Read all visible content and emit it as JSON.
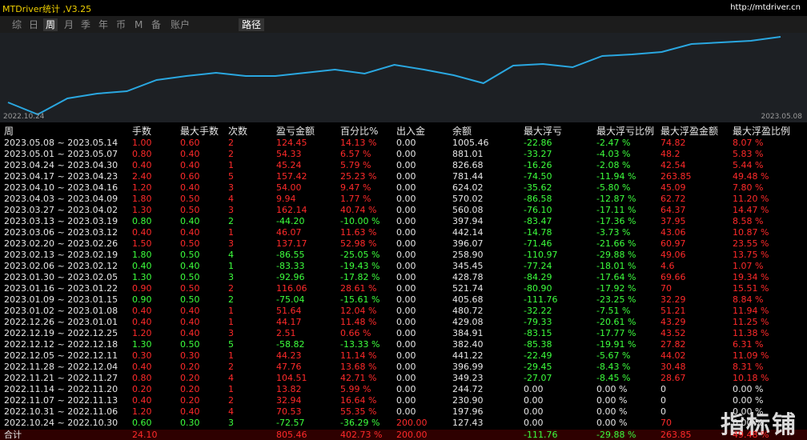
{
  "header": {
    "title": "MTDriver统计 ,V3.25",
    "url": "http://mtdriver.cn"
  },
  "tabs": [
    "综",
    "日",
    "周",
    "月",
    "季",
    "年",
    "币",
    "M",
    "备",
    "账户"
  ],
  "selected_tab": 2,
  "path_button": "路径",
  "chart_data": {
    "type": "line",
    "x": [
      "2022.10.24",
      null,
      null,
      null,
      null,
      null,
      null,
      null,
      null,
      null,
      null,
      null,
      null,
      null,
      null,
      null,
      null,
      null,
      null,
      null,
      null,
      null,
      null,
      null,
      null,
      null,
      "2023.05.08"
    ],
    "values": [
      25,
      10,
      30,
      36,
      39,
      53,
      58,
      62,
      58,
      58,
      62,
      66,
      61,
      72,
      66,
      59,
      49,
      71,
      73,
      69,
      83,
      85,
      88,
      98,
      100,
      102,
      107
    ],
    "ylim": [
      0,
      110
    ],
    "color": "#2aa7e0"
  },
  "table": {
    "columns": [
      "周",
      "手数",
      "最大手数",
      "次数",
      "盈亏金额",
      "百分比%",
      "出入金",
      "余额",
      "最大浮亏",
      "最大浮亏比例",
      "最大浮盈金额",
      "最大浮盈比例"
    ],
    "rows": [
      [
        "2023.05.08 ~ 2023.05.14",
        "1.00",
        "0.60",
        "2",
        "124.45",
        "14.13 %",
        "0.00",
        "1005.46",
        "-22.86",
        "-2.47 %",
        "74.82",
        "8.07 %"
      ],
      [
        "2023.05.01 ~ 2023.05.07",
        "0.80",
        "0.40",
        "2",
        "54.33",
        "6.57 %",
        "0.00",
        "881.01",
        "-33.27",
        "-4.03 %",
        "48.2",
        "5.83 %"
      ],
      [
        "2023.04.24 ~ 2023.04.30",
        "0.40",
        "0.40",
        "1",
        "45.24",
        "5.79 %",
        "0.00",
        "826.68",
        "-16.26",
        "-2.08 %",
        "42.54",
        "5.44 %"
      ],
      [
        "2023.04.17 ~ 2023.04.23",
        "2.40",
        "0.60",
        "5",
        "157.42",
        "25.23 %",
        "0.00",
        "781.44",
        "-74.50",
        "-11.94 %",
        "263.85",
        "49.48 %"
      ],
      [
        "2023.04.10 ~ 2023.04.16",
        "1.20",
        "0.40",
        "3",
        "54.00",
        "9.47 %",
        "0.00",
        "624.02",
        "-35.62",
        "-5.80 %",
        "45.09",
        "7.80 %"
      ],
      [
        "2023.04.03 ~ 2023.04.09",
        "1.80",
        "0.50",
        "4",
        "9.94",
        "1.77 %",
        "0.00",
        "570.02",
        "-86.58",
        "-12.87 %",
        "62.72",
        "11.20 %"
      ],
      [
        "2023.03.27 ~ 2023.04.02",
        "1.30",
        "0.50",
        "3",
        "162.14",
        "40.74 %",
        "0.00",
        "560.08",
        "-76.10",
        "-17.11 %",
        "64.37",
        "14.47 %"
      ],
      [
        "2023.03.13 ~ 2023.03.19",
        "0.80",
        "0.40",
        "2",
        "-44.20",
        "-10.00 %",
        "0.00",
        "397.94",
        "-83.47",
        "-17.36 %",
        "37.95",
        "8.58 %"
      ],
      [
        "2023.03.06 ~ 2023.03.12",
        "0.40",
        "0.40",
        "1",
        "46.07",
        "11.63 %",
        "0.00",
        "442.14",
        "-14.78",
        "-3.73 %",
        "43.06",
        "10.87 %"
      ],
      [
        "2023.02.20 ~ 2023.02.26",
        "1.50",
        "0.50",
        "3",
        "137.17",
        "52.98 %",
        "0.00",
        "396.07",
        "-71.46",
        "-21.66 %",
        "60.97",
        "23.55 %"
      ],
      [
        "2023.02.13 ~ 2023.02.19",
        "1.80",
        "0.50",
        "4",
        "-86.55",
        "-25.05 %",
        "0.00",
        "258.90",
        "-110.97",
        "-29.88 %",
        "49.06",
        "13.75 %"
      ],
      [
        "2023.02.06 ~ 2023.02.12",
        "0.40",
        "0.40",
        "1",
        "-83.33",
        "-19.43 %",
        "0.00",
        "345.45",
        "-77.24",
        "-18.01 %",
        "4.6",
        "1.07 %"
      ],
      [
        "2023.01.30 ~ 2023.02.05",
        "1.30",
        "0.50",
        "3",
        "-92.96",
        "-17.82 %",
        "0.00",
        "428.78",
        "-84.29",
        "-17.64 %",
        "69.66",
        "19.34 %"
      ],
      [
        "2023.01.16 ~ 2023.01.22",
        "0.90",
        "0.50",
        "2",
        "116.06",
        "28.61 %",
        "0.00",
        "521.74",
        "-80.90",
        "-17.92 %",
        "70",
        "15.51 %"
      ],
      [
        "2023.01.09 ~ 2023.01.15",
        "0.90",
        "0.50",
        "2",
        "-75.04",
        "-15.61 %",
        "0.00",
        "405.68",
        "-111.76",
        "-23.25 %",
        "32.29",
        "8.84 %"
      ],
      [
        "2023.01.02 ~ 2023.01.08",
        "0.40",
        "0.40",
        "1",
        "51.64",
        "12.04 %",
        "0.00",
        "480.72",
        "-32.22",
        "-7.51 %",
        "51.21",
        "11.94 %"
      ],
      [
        "2022.12.26 ~ 2023.01.01",
        "0.40",
        "0.40",
        "1",
        "44.17",
        "11.48 %",
        "0.00",
        "429.08",
        "-79.33",
        "-20.61 %",
        "43.29",
        "11.25 %"
      ],
      [
        "2022.12.19 ~ 2022.12.25",
        "1.20",
        "0.40",
        "3",
        "2.51",
        "0.66 %",
        "0.00",
        "384.91",
        "-83.15",
        "-17.77 %",
        "43.52",
        "11.38 %"
      ],
      [
        "2022.12.12 ~ 2022.12.18",
        "1.30",
        "0.50",
        "5",
        "-58.82",
        "-13.33 %",
        "0.00",
        "382.40",
        "-85.38",
        "-19.91 %",
        "27.82",
        "6.31 %"
      ],
      [
        "2022.12.05 ~ 2022.12.11",
        "0.30",
        "0.30",
        "1",
        "44.23",
        "11.14 %",
        "0.00",
        "441.22",
        "-22.49",
        "-5.67 %",
        "44.02",
        "11.09 %"
      ],
      [
        "2022.11.28 ~ 2022.12.04",
        "0.40",
        "0.20",
        "2",
        "47.76",
        "13.68 %",
        "0.00",
        "396.99",
        "-29.45",
        "-8.43 %",
        "30.48",
        "8.31 %"
      ],
      [
        "2022.11.21 ~ 2022.11.27",
        "0.80",
        "0.20",
        "4",
        "104.51",
        "42.71 %",
        "0.00",
        "349.23",
        "-27.07",
        "-8.45 %",
        "28.67",
        "10.18 %"
      ],
      [
        "2022.11.14 ~ 2022.11.20",
        "0.20",
        "0.20",
        "1",
        "13.82",
        "5.99 %",
        "0.00",
        "244.72",
        "0.00",
        "0.00 %",
        "0",
        "0.00 %"
      ],
      [
        "2022.11.07 ~ 2022.11.13",
        "0.40",
        "0.20",
        "2",
        "32.94",
        "16.64 %",
        "0.00",
        "230.90",
        "0.00",
        "0.00 %",
        "0",
        "0.00 %"
      ],
      [
        "2022.10.31 ~ 2022.11.06",
        "1.20",
        "0.40",
        "4",
        "70.53",
        "55.35 %",
        "0.00",
        "197.96",
        "0.00",
        "0.00 %",
        "0",
        "0.00 %"
      ],
      [
        "2022.10.24 ~ 2022.10.30",
        "0.60",
        "0.30",
        "3",
        "-72.57",
        "-36.29 %",
        "200.00",
        "127.43",
        "0.00",
        "0.00 %",
        "70",
        "0.00 %"
      ]
    ],
    "total": [
      "合计",
      "24.10",
      null,
      null,
      "805.46",
      "402.73 %",
      "200.00",
      null,
      "-111.76",
      "-29.88 %",
      "263.85",
      "49.48 %"
    ]
  },
  "watermark": "指标铺"
}
